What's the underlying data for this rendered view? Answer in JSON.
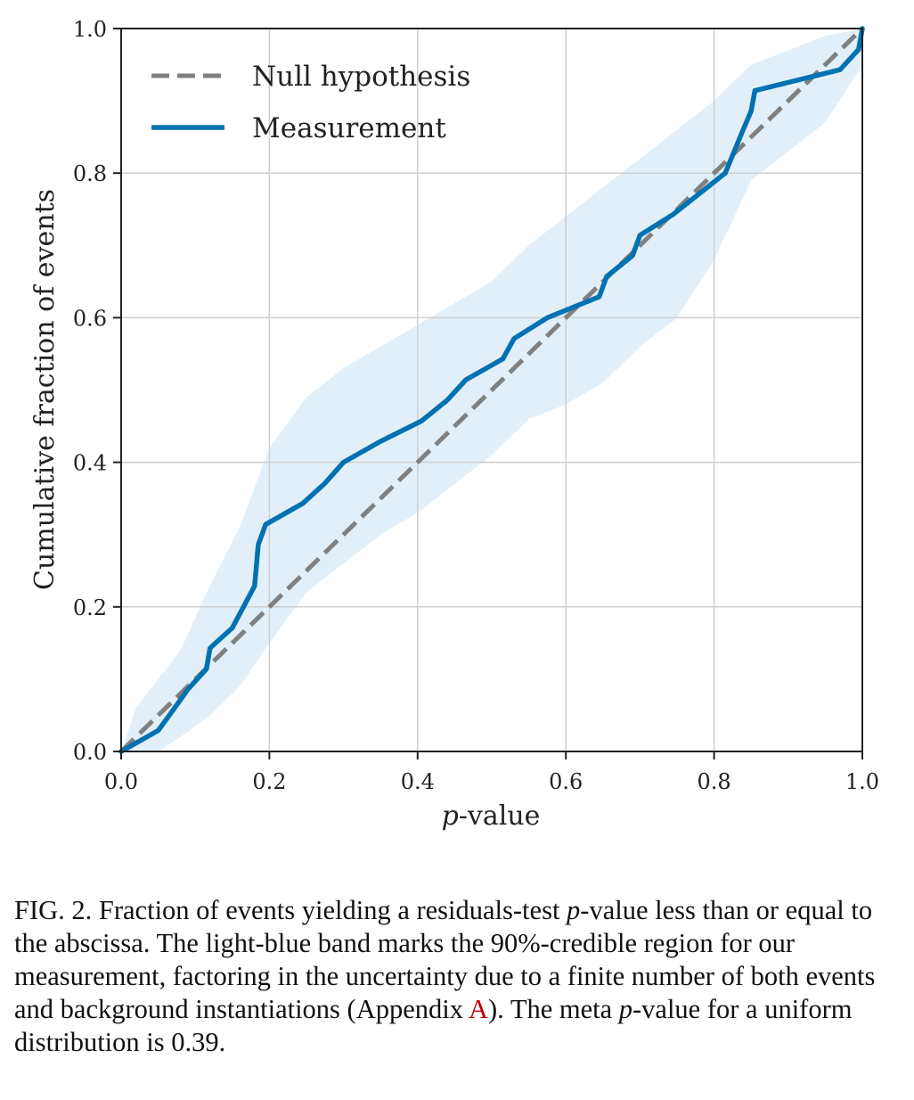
{
  "chart_data": {
    "type": "line",
    "xlabel_var": "p",
    "xlabel_rest": "-value",
    "ylabel": "Cumulative fraction of events",
    "xlim": [
      0.0,
      1.0
    ],
    "ylim": [
      0.0,
      1.0
    ],
    "grid": true,
    "legend_position": "top-left",
    "x_ticks": [
      "0.0",
      "0.2",
      "0.4",
      "0.6",
      "0.8",
      "1.0"
    ],
    "y_ticks": [
      "0.0",
      "0.2",
      "0.4",
      "0.6",
      "0.8",
      "1.0"
    ],
    "series": [
      {
        "name": "Null hypothesis",
        "style": "dashed",
        "color": "#808080",
        "x": [
          0.0,
          1.0
        ],
        "y": [
          0.0,
          1.0
        ]
      },
      {
        "name": "Measurement",
        "style": "solid",
        "color": "#0072b2",
        "x": [
          0.0,
          0.05,
          0.07,
          0.09,
          0.115,
          0.12,
          0.15,
          0.18,
          0.185,
          0.195,
          0.245,
          0.275,
          0.3,
          0.35,
          0.405,
          0.44,
          0.465,
          0.515,
          0.53,
          0.575,
          0.645,
          0.655,
          0.69,
          0.7,
          0.745,
          0.815,
          0.838,
          0.85,
          0.855,
          0.97,
          0.995,
          1.0
        ],
        "y": [
          0.0,
          0.029,
          0.057,
          0.086,
          0.114,
          0.143,
          0.171,
          0.229,
          0.286,
          0.314,
          0.343,
          0.371,
          0.4,
          0.429,
          0.457,
          0.486,
          0.514,
          0.543,
          0.571,
          0.6,
          0.629,
          0.657,
          0.686,
          0.714,
          0.743,
          0.8,
          0.857,
          0.886,
          0.914,
          0.943,
          0.971,
          1.0
        ]
      }
    ],
    "band": {
      "name": "90%-credible region",
      "color": "#d6e8f5",
      "x": [
        0.0,
        0.02,
        0.05,
        0.08,
        0.12,
        0.16,
        0.2,
        0.25,
        0.3,
        0.35,
        0.4,
        0.45,
        0.5,
        0.55,
        0.6,
        0.65,
        0.7,
        0.75,
        0.8,
        0.85,
        0.9,
        0.95,
        1.0
      ],
      "upper": [
        0.0,
        0.06,
        0.1,
        0.14,
        0.23,
        0.31,
        0.42,
        0.49,
        0.53,
        0.56,
        0.59,
        0.62,
        0.65,
        0.7,
        0.74,
        0.78,
        0.82,
        0.86,
        0.9,
        0.95,
        0.97,
        0.99,
        1.0
      ],
      "lower": [
        0.0,
        0.0,
        0.0,
        0.02,
        0.05,
        0.09,
        0.15,
        0.22,
        0.26,
        0.3,
        0.33,
        0.37,
        0.41,
        0.46,
        0.48,
        0.51,
        0.56,
        0.6,
        0.68,
        0.79,
        0.83,
        0.87,
        0.95
      ]
    }
  },
  "caption": {
    "part1": "FIG. 2. Fraction of events yielding a residuals-test ",
    "p1": "p",
    "part2": "-value less than or equal to the abscissa. The light-blue band marks the 90%-credible region for our measurement, factoring in the uncertainty due to a finite number of both events and background instantiations (Appendix ",
    "ref": "A",
    "part3": "). The meta ",
    "p2": "p",
    "part4": "-value for a uniform distribution is 0.39."
  }
}
